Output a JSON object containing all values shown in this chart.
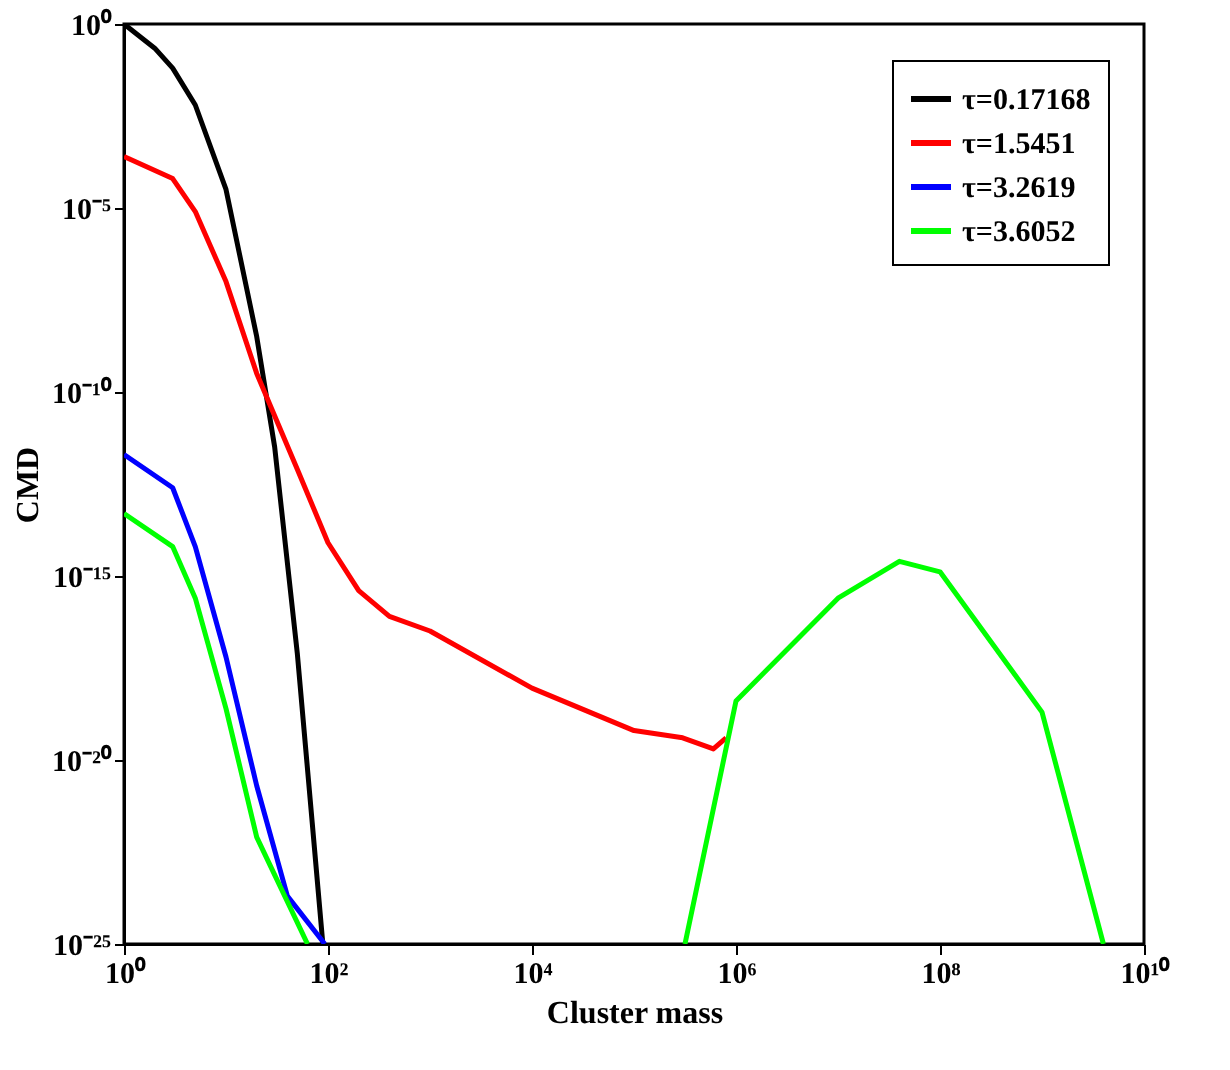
{
  "chart_data": {
    "type": "line",
    "xlabel": "Cluster mass",
    "ylabel": "CMD",
    "log": "xy",
    "grid": false,
    "legend": "top right",
    "marker": "none",
    "line_style": "solid",
    "xlim": [
      1,
      10000000000.0
    ],
    "ylim": [
      1e-25,
      1
    ],
    "xticks": [
      {
        "value": 1,
        "label": "10⁰"
      },
      {
        "value": 100,
        "label": "10²"
      },
      {
        "value": 10000,
        "label": "10⁴"
      },
      {
        "value": 1000000,
        "label": "10⁶"
      },
      {
        "value": 100000000,
        "label": "10⁸"
      },
      {
        "value": 10000000000,
        "label": "10¹⁰"
      }
    ],
    "yticks": [
      {
        "value": 1,
        "label": "10⁰"
      },
      {
        "value": 1e-05,
        "label": "10⁻⁵"
      },
      {
        "value": 1e-10,
        "label": "10⁻¹⁰"
      },
      {
        "value": 1e-15,
        "label": "10⁻¹⁵"
      },
      {
        "value": 1e-20,
        "label": "10⁻²⁰"
      },
      {
        "value": 1e-25,
        "label": "10⁻²⁵"
      }
    ],
    "series": [
      {
        "name": "τ=0.17168",
        "color": "#000000",
        "x": [
          1,
          2,
          3,
          5,
          10,
          20,
          30,
          50,
          70,
          89
        ],
        "values": [
          1,
          0.22,
          0.063,
          0.0063,
          3.2e-05,
          3.2e-09,
          3.2e-12,
          8e-18,
          2e-22,
          1e-25
        ]
      },
      {
        "name": "τ=1.5451",
        "color": "#ff0000",
        "x": [
          1,
          3,
          5,
          10,
          20,
          50,
          100,
          200,
          400,
          1000,
          10000,
          100000,
          300000,
          600000,
          800000
        ],
        "values": [
          0.00025,
          6.3e-05,
          8e-06,
          1e-07,
          3.2e-10,
          8e-13,
          8e-15,
          4e-16,
          8e-17,
          3.2e-17,
          9e-19,
          6.3e-20,
          4e-20,
          2e-20,
          4e-20
        ]
      },
      {
        "name": "τ=3.2619",
        "color": "#0000ff",
        "x": [
          1,
          3,
          5,
          10,
          20,
          40,
          93
        ],
        "values": [
          2e-12,
          2.5e-13,
          6.3e-15,
          6.3e-18,
          2e-21,
          2e-24,
          1e-25
        ]
      },
      {
        "name": "τ=3.6052",
        "color": "#00ff00",
        "x": [
          1,
          3,
          5,
          10,
          20,
          63,
          null,
          316000,
          1000000,
          10000000,
          40000000,
          100000000,
          1000000000,
          4000000000
        ],
        "values": [
          5e-14,
          6.3e-15,
          2.5e-16,
          2.5e-19,
          8e-23,
          1e-25,
          null,
          1e-25,
          4e-19,
          2.5e-16,
          2.5e-15,
          1.3e-15,
          2e-19,
          1e-25
        ]
      }
    ]
  }
}
